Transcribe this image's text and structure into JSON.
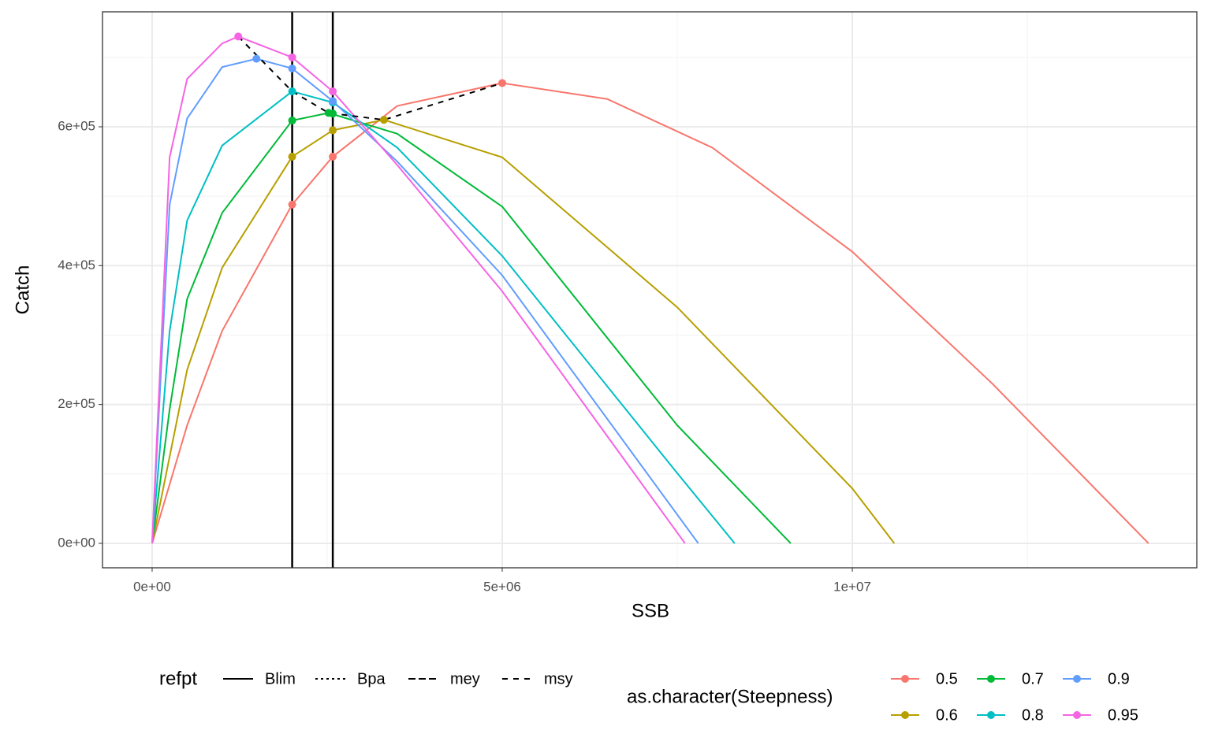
{
  "chart_data": {
    "type": "line",
    "x_label": "SSB",
    "y_label": "Catch",
    "xlim": [
      -709000,
      14920000
    ],
    "ylim": [
      -35200,
      765600
    ],
    "xticks": [
      {
        "value": 0,
        "label": "0e+00"
      },
      {
        "value": 5000000,
        "label": "5e+06"
      },
      {
        "value": 10000000,
        "label": "1e+07"
      }
    ],
    "yticks": [
      {
        "value": 0,
        "label": "0e+00"
      },
      {
        "value": 200000,
        "label": "2e+05"
      },
      {
        "value": 400000,
        "label": "4e+05"
      },
      {
        "value": 600000,
        "label": "6e+05"
      }
    ],
    "x_minor_grid": [
      2500000,
      7500000,
      12500000
    ],
    "y_minor_grid": [
      100000,
      300000,
      500000,
      700000
    ],
    "grid": true,
    "legend_position": "bottom",
    "series": [
      {
        "name": "0.5",
        "color": "#F8766D",
        "x": [
          0,
          500000,
          1000000,
          2000000,
          2580000,
          3500000,
          5000000,
          6500000,
          8000000,
          10000000,
          12000000,
          14230000
        ],
        "values": [
          0,
          170000,
          306000,
          488000,
          557000,
          630000,
          663000,
          640000,
          570000,
          420000,
          230000,
          0
        ],
        "points": {
          "x": [
            2000000,
            2580000,
            5000000
          ],
          "y": [
            488000,
            557000,
            663000
          ]
        }
      },
      {
        "name": "0.6",
        "color": "#B79F00",
        "x": [
          0,
          500000,
          1000000,
          2000000,
          2580000,
          3310000,
          5000000,
          7500000,
          10000000,
          10600000
        ],
        "values": [
          0,
          250000,
          397000,
          557000,
          595000,
          610000,
          556000,
          340000,
          79000,
          0
        ],
        "points": {
          "x": [
            2000000,
            2580000,
            3310000
          ],
          "y": [
            557000,
            595000,
            610000
          ]
        }
      },
      {
        "name": "0.7",
        "color": "#00BA38",
        "x": [
          0,
          250000,
          500000,
          1000000,
          2000000,
          2520000,
          3500000,
          5000000,
          7500000,
          9120000
        ],
        "values": [
          0,
          193000,
          352000,
          476000,
          609000,
          620000,
          590000,
          485000,
          170000,
          0
        ],
        "points": {
          "x": [
            2000000,
            2520000,
            2580000
          ],
          "y": [
            609000,
            620000,
            619000
          ]
        }
      },
      {
        "name": "0.8",
        "color": "#00BFC4",
        "x": [
          0,
          250000,
          500000,
          1000000,
          2000000,
          2580000,
          3500000,
          5000000,
          7500000,
          8320000
        ],
        "values": [
          0,
          306000,
          465000,
          573000,
          651000,
          635000,
          570000,
          414000,
          101000,
          0
        ],
        "points": {
          "x": [
            2000000,
            2580000
          ],
          "y": [
            651000,
            635000
          ]
        }
      },
      {
        "name": "0.9",
        "color": "#619CFF",
        "x": [
          0,
          250000,
          500000,
          1000000,
          1490000,
          2000000,
          2580000,
          3500000,
          5000000,
          7800000
        ],
        "values": [
          0,
          488000,
          612000,
          686000,
          698000,
          684000,
          637000,
          550000,
          386000,
          0
        ],
        "points": {
          "x": [
            1490000,
            2000000,
            2580000
          ],
          "y": [
            698000,
            684000,
            637000
          ]
        }
      },
      {
        "name": "0.95",
        "color": "#F564E3",
        "x": [
          0,
          250000,
          500000,
          1000000,
          1230000,
          2000000,
          2580000,
          3500000,
          5000000,
          7610000
        ],
        "values": [
          0,
          556000,
          669000,
          720000,
          730000,
          700000,
          651000,
          545000,
          363000,
          0
        ],
        "points": {
          "x": [
            1230000,
            2000000,
            2580000
          ],
          "y": [
            730000,
            700000,
            651000
          ]
        }
      }
    ],
    "vlines": [
      2000000,
      2580000
    ],
    "msy_line": {
      "x": [
        1230000,
        2000000,
        2520000,
        3310000,
        5000000
      ],
      "y": [
        730000,
        651000,
        620000,
        610000,
        663000
      ]
    },
    "refpt_legend": {
      "title": "refpt",
      "items": [
        {
          "name": "Blim",
          "dash": "none"
        },
        {
          "name": "Bpa",
          "dash": "3,4"
        },
        {
          "name": "mey",
          "dash": "9,4"
        },
        {
          "name": "msy",
          "dash": "7,7"
        }
      ]
    },
    "color_legend_title": "as.character(Steepness)"
  }
}
